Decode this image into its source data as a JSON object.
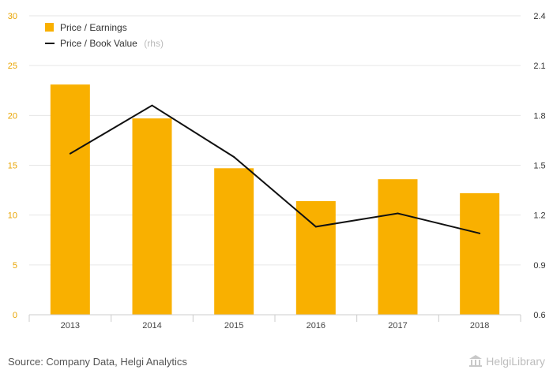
{
  "chart_data": {
    "type": "bar",
    "categories": [
      "2013",
      "2014",
      "2015",
      "2016",
      "2017",
      "2018"
    ],
    "series": [
      {
        "name": "Price / Earnings",
        "type": "bar",
        "axis": "left",
        "color": "#f9b000",
        "values": [
          23.1,
          19.7,
          14.7,
          11.4,
          13.6,
          12.2
        ]
      },
      {
        "name": "Price / Book Value",
        "name_suffix": "(rhs)",
        "type": "line",
        "axis": "right",
        "color": "#111111",
        "values": [
          1.57,
          1.86,
          1.55,
          1.13,
          1.21,
          1.09
        ]
      }
    ],
    "y_left": {
      "min": 0,
      "max": 30,
      "ticks": [
        "0",
        "5",
        "10",
        "15",
        "20",
        "25",
        "30"
      ]
    },
    "y_right": {
      "min": 0.6,
      "max": 2.4,
      "ticks": [
        "0.6",
        "0.9",
        "1.2",
        "1.5",
        "1.8",
        "2.1",
        "2.4"
      ]
    },
    "grid": "horizontal",
    "legend_position": "top-left"
  },
  "footer": {
    "source": "Source: Company Data, Helgi Analytics",
    "logo_text": "HelgiLibrary"
  },
  "colors": {
    "bar": "#f9b000",
    "line": "#111111",
    "grid": "#e6e6e6",
    "left_axis_text": "#e8a400"
  }
}
